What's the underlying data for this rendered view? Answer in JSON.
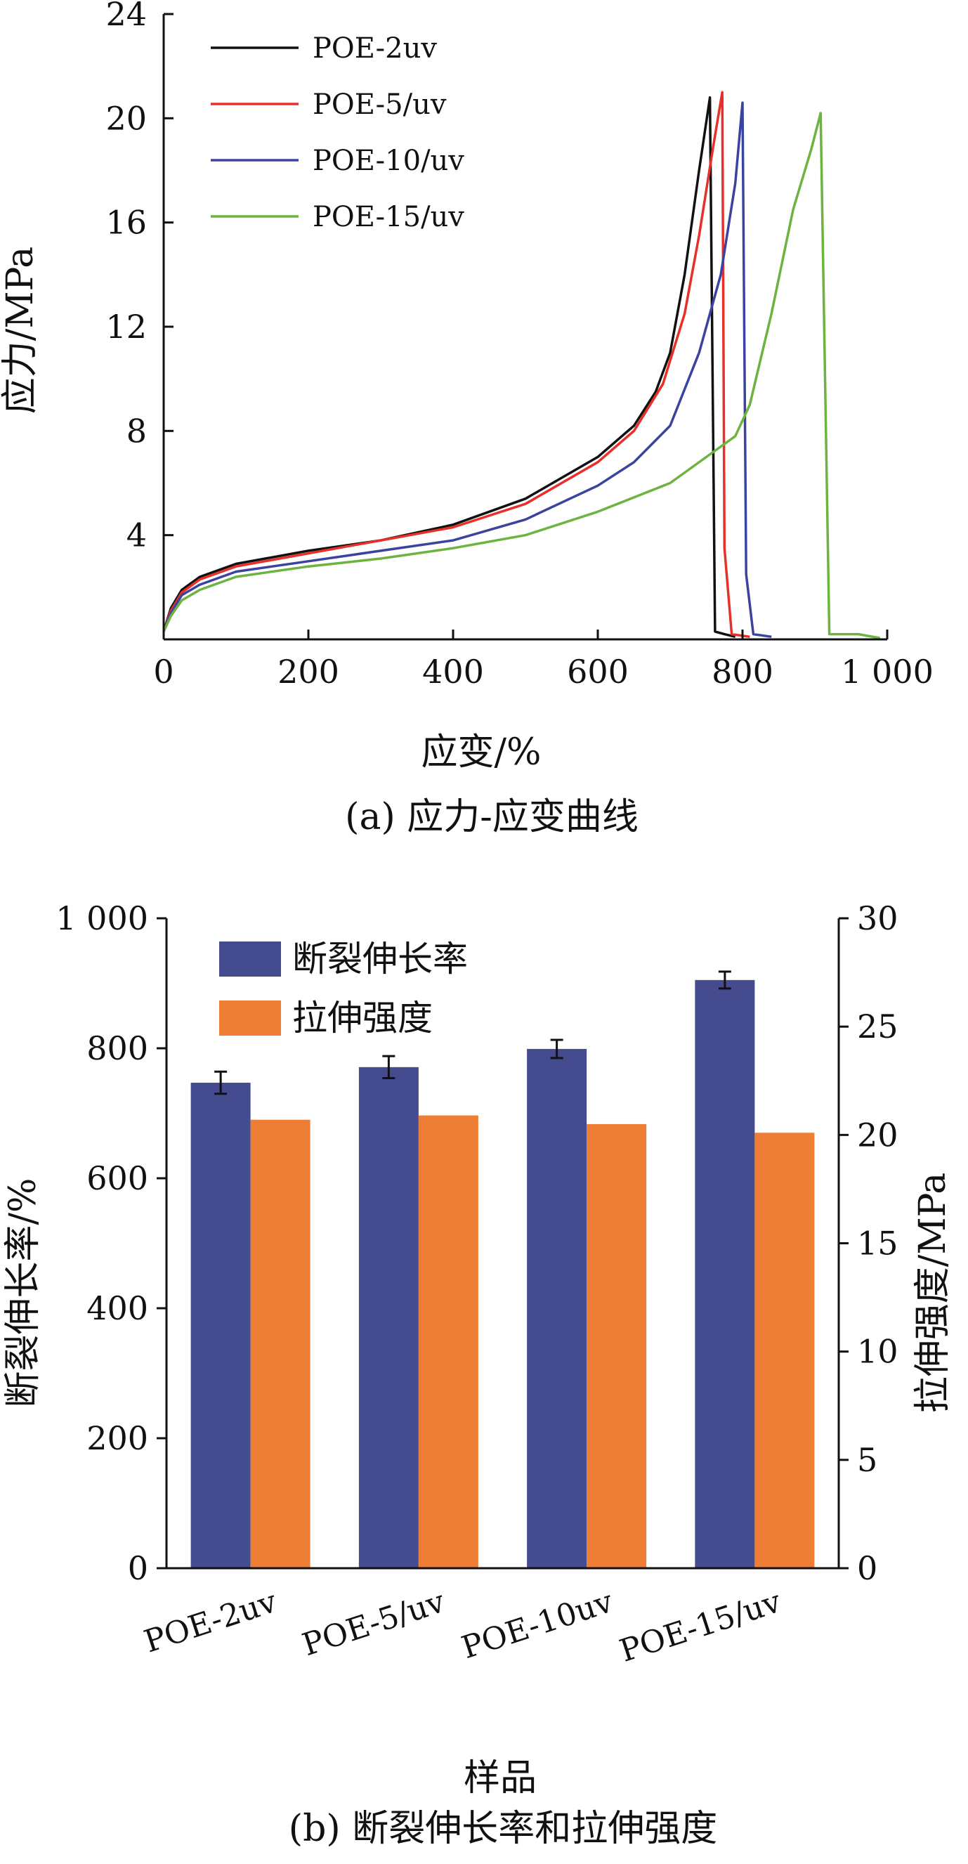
{
  "chart_data": [
    {
      "type": "line",
      "panel": "a",
      "caption": "(a) 应力-应变曲线",
      "xlabel": "应变/%",
      "ylabel": "应力/MPa",
      "xlim": [
        0,
        1000
      ],
      "ylim": [
        0,
        24
      ],
      "xticks": [
        0,
        200,
        400,
        600,
        800,
        1000
      ],
      "xtick_labels": [
        "0",
        "200",
        "400",
        "600",
        "800",
        "1 000"
      ],
      "yticks": [
        4,
        8,
        12,
        16,
        20,
        24
      ],
      "ytick_labels": [
        "4",
        "8",
        "12",
        "16",
        "20",
        "24"
      ],
      "grid": false,
      "legend_position": "top-left",
      "series": [
        {
          "name": "POE-2uv",
          "color": "#111111",
          "points": [
            [
              0,
              0.3
            ],
            [
              10,
              1.2
            ],
            [
              25,
              1.9
            ],
            [
              50,
              2.4
            ],
            [
              100,
              2.9
            ],
            [
              200,
              3.4
            ],
            [
              300,
              3.8
            ],
            [
              400,
              4.4
            ],
            [
              500,
              5.4
            ],
            [
              600,
              7.0
            ],
            [
              650,
              8.2
            ],
            [
              680,
              9.5
            ],
            [
              700,
              11.0
            ],
            [
              720,
              14.0
            ],
            [
              740,
              18.0
            ],
            [
              755,
              20.8
            ],
            [
              762,
              0.3
            ],
            [
              775,
              0.2
            ],
            [
              790,
              0.1
            ]
          ]
        },
        {
          "name": "POE-5/uv",
          "color": "#e8302a",
          "points": [
            [
              0,
              0.3
            ],
            [
              10,
              1.1
            ],
            [
              25,
              1.8
            ],
            [
              50,
              2.3
            ],
            [
              100,
              2.8
            ],
            [
              200,
              3.3
            ],
            [
              300,
              3.8
            ],
            [
              400,
              4.3
            ],
            [
              500,
              5.2
            ],
            [
              600,
              6.8
            ],
            [
              650,
              8.0
            ],
            [
              690,
              9.8
            ],
            [
              720,
              12.5
            ],
            [
              740,
              15.5
            ],
            [
              760,
              19.0
            ],
            [
              772,
              21.0
            ],
            [
              775,
              3.5
            ],
            [
              785,
              0.2
            ],
            [
              810,
              0.1
            ]
          ]
        },
        {
          "name": "POE-10/uv",
          "color": "#3a44a0",
          "points": [
            [
              0,
              0.3
            ],
            [
              10,
              1.0
            ],
            [
              25,
              1.7
            ],
            [
              50,
              2.1
            ],
            [
              100,
              2.6
            ],
            [
              200,
              3.0
            ],
            [
              300,
              3.4
            ],
            [
              400,
              3.8
            ],
            [
              500,
              4.6
            ],
            [
              600,
              5.9
            ],
            [
              650,
              6.8
            ],
            [
              700,
              8.2
            ],
            [
              740,
              11.0
            ],
            [
              770,
              14.0
            ],
            [
              790,
              17.5
            ],
            [
              800,
              20.6
            ],
            [
              805,
              2.5
            ],
            [
              815,
              0.2
            ],
            [
              840,
              0.1
            ]
          ]
        },
        {
          "name": "POE-15/uv",
          "color": "#6db33f",
          "points": [
            [
              0,
              0.3
            ],
            [
              10,
              0.9
            ],
            [
              25,
              1.5
            ],
            [
              50,
              1.9
            ],
            [
              100,
              2.4
            ],
            [
              200,
              2.8
            ],
            [
              300,
              3.1
            ],
            [
              400,
              3.5
            ],
            [
              500,
              4.0
            ],
            [
              600,
              4.9
            ],
            [
              700,
              6.0
            ],
            [
              760,
              7.2
            ],
            [
              790,
              7.8
            ],
            [
              810,
              9.0
            ],
            [
              840,
              12.5
            ],
            [
              870,
              16.5
            ],
            [
              895,
              18.8
            ],
            [
              908,
              20.2
            ],
            [
              920,
              0.2
            ],
            [
              935,
              0.2
            ],
            [
              960,
              0.2
            ],
            [
              990,
              0.05
            ]
          ]
        }
      ]
    },
    {
      "type": "bar",
      "panel": "b",
      "caption": "(b) 断裂伸长率和拉伸强度",
      "xlabel": "样品",
      "ylabel_left": "断裂伸长率/%",
      "ylabel_right": "拉伸强度/MPa",
      "categories": [
        "POE-2uv",
        "POE-5/uv",
        "POE-10uv",
        "POE-15/uv"
      ],
      "ylim_left": [
        0,
        1000
      ],
      "ylim_right": [
        0,
        30
      ],
      "yticks_left": [
        0,
        200,
        400,
        600,
        800,
        1000
      ],
      "ytick_labels_left": [
        "0",
        "200",
        "400",
        "600",
        "800",
        "1 000"
      ],
      "yticks_right": [
        0,
        5,
        10,
        15,
        20,
        25,
        30
      ],
      "ytick_labels_right": [
        "0",
        "5",
        "10",
        "15",
        "20",
        "25",
        "30"
      ],
      "grid": false,
      "legend_position": "top-left",
      "series": [
        {
          "name": "断裂伸长率",
          "axis": "left",
          "color": "#444b8e",
          "values": [
            747,
            771,
            799,
            905
          ],
          "errors": [
            17,
            17,
            14,
            13
          ]
        },
        {
          "name": "拉伸强度",
          "axis": "right",
          "color": "#ee7d36",
          "values": [
            20.7,
            20.9,
            20.5,
            20.1
          ]
        }
      ]
    }
  ]
}
